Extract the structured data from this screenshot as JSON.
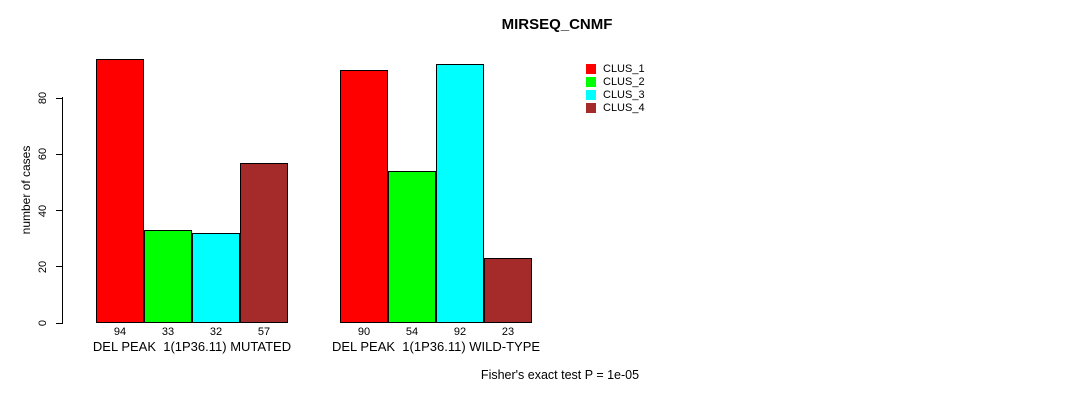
{
  "chart_data": {
    "type": "bar",
    "title": "MIRSEQ_CNMF",
    "ylabel": "number of cases",
    "xlabel": "",
    "ylim": [
      0,
      94
    ],
    "yticks": [
      0,
      20,
      40,
      60,
      80
    ],
    "grid": false,
    "legend_position": "right",
    "categories": [
      "DEL PEAK  1(1P36.11) MUTATED",
      "DEL PEAK  1(1P36.11) WILD-TYPE"
    ],
    "series": [
      {
        "name": "CLUS_1",
        "color": "#ff0000",
        "values": [
          94,
          90
        ]
      },
      {
        "name": "CLUS_2",
        "color": "#00ff00",
        "values": [
          33,
          54
        ]
      },
      {
        "name": "CLUS_3",
        "color": "#00ffff",
        "values": [
          32,
          92
        ]
      },
      {
        "name": "CLUS_4",
        "color": "#a52a2a",
        "values": [
          57,
          23
        ]
      }
    ],
    "bar_value_labels": [
      [
        "94",
        "33",
        "32",
        "57"
      ],
      [
        "90",
        "54",
        "92",
        "23"
      ]
    ],
    "annotation": "Fisher's exact test P = 1e-05",
    "bar_border_color": "#000000"
  }
}
